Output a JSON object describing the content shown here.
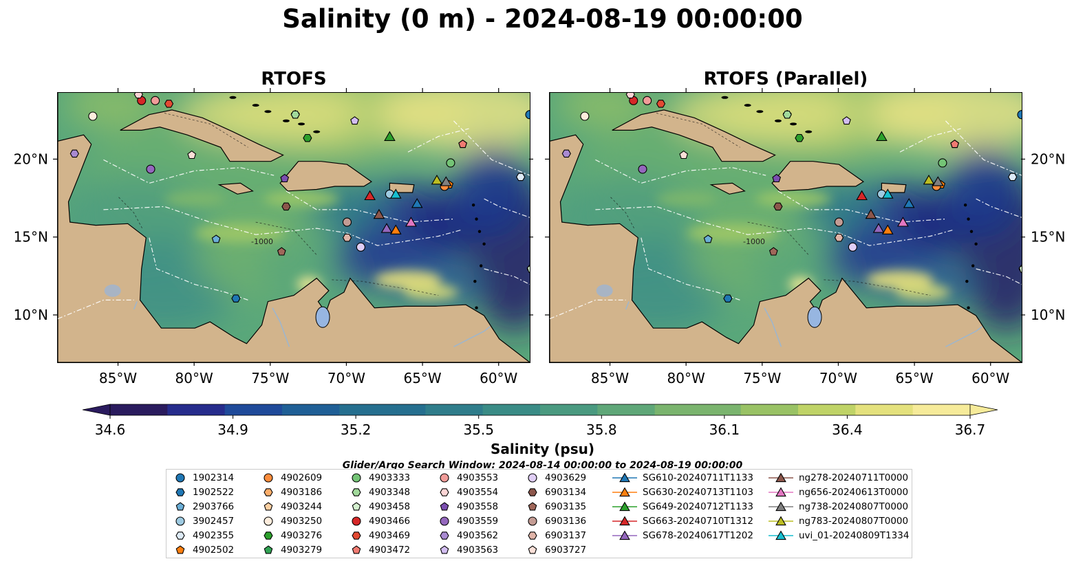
{
  "title": "Salinity (0 m) - 2024-08-19 00:00:00",
  "panels": [
    {
      "title": "RTOFS"
    },
    {
      "title": "RTOFS (Parallel)"
    }
  ],
  "axes": {
    "lon_ticks": [
      "85°W",
      "80°W",
      "75°W",
      "70°W",
      "65°W",
      "60°W"
    ],
    "lat_ticks": [
      "20°N",
      "15°N",
      "10°N"
    ],
    "lon_range": [
      -89,
      -58
    ],
    "lat_range": [
      7,
      24.3
    ]
  },
  "colorbar": {
    "label": "Salinity (psu)",
    "ticks": [
      "34.6",
      "34.9",
      "35.2",
      "35.5",
      "35.8",
      "36.1",
      "36.4",
      "36.7"
    ],
    "range": [
      34.6,
      36.7
    ],
    "colormap": "haline",
    "extend": "both"
  },
  "search_window": "Glider/Argo Search Window: 2024-08-14 00:00:00 to 2024-08-19 00:00:00",
  "contour_labels": [
    "-1000"
  ],
  "colors": {
    "land": "#d2b48c",
    "lakes": "#97b6e1",
    "background": "#ffffff"
  },
  "legend": [
    {
      "label": "1902314",
      "color": "#1f77b4",
      "marker": "circle"
    },
    {
      "label": "1902522",
      "color": "#1f77b4",
      "marker": "hexagon"
    },
    {
      "label": "2903766",
      "color": "#6baed6",
      "marker": "pentagon"
    },
    {
      "label": "3902457",
      "color": "#9ecae1",
      "marker": "circle"
    },
    {
      "label": "4902355",
      "color": "#deebf7",
      "marker": "hexagon"
    },
    {
      "label": "4902502",
      "color": "#ff7f0e",
      "marker": "pentagon"
    },
    {
      "label": "4902609",
      "color": "#fd8d3c",
      "marker": "circle"
    },
    {
      "label": "4903186",
      "color": "#fdae6b",
      "marker": "hexagon"
    },
    {
      "label": "4903244",
      "color": "#fdd0a2",
      "marker": "pentagon"
    },
    {
      "label": "4903250",
      "color": "#feeddd",
      "marker": "circle"
    },
    {
      "label": "4903276",
      "color": "#2ca02c",
      "marker": "hexagon"
    },
    {
      "label": "4903279",
      "color": "#31a354",
      "marker": "pentagon"
    },
    {
      "label": "4903333",
      "color": "#74c476",
      "marker": "circle"
    },
    {
      "label": "4903348",
      "color": "#a1d99b",
      "marker": "hexagon"
    },
    {
      "label": "4903458",
      "color": "#d4f0cf",
      "marker": "pentagon"
    },
    {
      "label": "4903466",
      "color": "#d62728",
      "marker": "circle"
    },
    {
      "label": "4903469",
      "color": "#e34a33",
      "marker": "hexagon"
    },
    {
      "label": "4903472",
      "color": "#f07b72",
      "marker": "pentagon"
    },
    {
      "label": "4903553",
      "color": "#f19c99",
      "marker": "circle"
    },
    {
      "label": "4903554",
      "color": "#fcd5d5",
      "marker": "hexagon"
    },
    {
      "label": "4903558",
      "color": "#7b4fb0",
      "marker": "pentagon"
    },
    {
      "label": "4903559",
      "color": "#9467bd",
      "marker": "circle"
    },
    {
      "label": "4903562",
      "color": "#a98ad1",
      "marker": "hexagon"
    },
    {
      "label": "4903563",
      "color": "#d2bdf0",
      "marker": "pentagon"
    },
    {
      "label": "4903629",
      "color": "#e0cef6",
      "marker": "circle"
    },
    {
      "label": "6903134",
      "color": "#8c564b",
      "marker": "hexagon"
    },
    {
      "label": "6903135",
      "color": "#a0675a",
      "marker": "pentagon"
    },
    {
      "label": "6903136",
      "color": "#c49c94",
      "marker": "circle"
    },
    {
      "label": "6903137",
      "color": "#e0b4a8",
      "marker": "hexagon"
    },
    {
      "label": "6903727",
      "color": "#fbe0d8",
      "marker": "pentagon"
    },
    {
      "label": "SG610-20240711T1133",
      "color": "#1f77b4",
      "marker": "triangle"
    },
    {
      "label": "SG630-20240713T1103",
      "color": "#ff7f0e",
      "marker": "triangle"
    },
    {
      "label": "SG649-20240712T1133",
      "color": "#2ca02c",
      "marker": "triangle"
    },
    {
      "label": "SG663-20240710T1312",
      "color": "#d62728",
      "marker": "triangle"
    },
    {
      "label": "SG678-20240617T1202",
      "color": "#9467bd",
      "marker": "triangle"
    },
    {
      "label": "ng278-20240711T0000",
      "color": "#8c564b",
      "marker": "triangle"
    },
    {
      "label": "ng656-20240613T0000",
      "color": "#e377c2",
      "marker": "triangle"
    },
    {
      "label": "ng738-20240807T0000",
      "color": "#7f7f7f",
      "marker": "triangle"
    },
    {
      "label": "ng783-20240807T0000",
      "color": "#bcbd22",
      "marker": "triangle"
    },
    {
      "label": "uvi_01-20240809T1334",
      "color": "#17becf",
      "marker": "triangle"
    }
  ],
  "platform_positions": [
    {
      "id": "1902314",
      "lon": -58.0,
      "lat": 22.9
    },
    {
      "id": "1902522",
      "lon": -77.3,
      "lat": 11.1
    },
    {
      "id": "2903766",
      "lon": -78.6,
      "lat": 14.9
    },
    {
      "id": "3902457",
      "lon": -67.2,
      "lat": 17.8
    },
    {
      "id": "4902355",
      "lon": -58.6,
      "lat": 18.9
    },
    {
      "id": "4902502",
      "lon": -63.3,
      "lat": 18.4
    },
    {
      "id": "4902609",
      "lon": -63.6,
      "lat": 18.3
    },
    {
      "id": "4903186",
      "lon": -57.9,
      "lat": 13.0
    },
    {
      "id": "4903244",
      "lon": -62.4,
      "lat": 21.0
    },
    {
      "id": "4903250",
      "lon": -86.7,
      "lat": 22.8
    },
    {
      "id": "4903276",
      "lon": -72.6,
      "lat": 21.4
    },
    {
      "id": "4903279",
      "lon": -73.4,
      "lat": 22.9
    },
    {
      "id": "4903333",
      "lon": -63.2,
      "lat": 19.8
    },
    {
      "id": "4903348",
      "lon": -73.4,
      "lat": 22.9
    },
    {
      "id": "4903458",
      "lon": -57.9,
      "lat": 13.0
    },
    {
      "id": "4903466",
      "lon": -83.5,
      "lat": 23.8
    },
    {
      "id": "4903469",
      "lon": -81.7,
      "lat": 23.6
    },
    {
      "id": "4903472",
      "lon": -62.4,
      "lat": 21.0
    },
    {
      "id": "4903553",
      "lon": -82.6,
      "lat": 23.8
    },
    {
      "id": "4903554",
      "lon": -83.7,
      "lat": 24.2
    },
    {
      "id": "4903558",
      "lon": -74.1,
      "lat": 18.8
    },
    {
      "id": "4903559",
      "lon": -82.9,
      "lat": 19.4
    },
    {
      "id": "4903562",
      "lon": -87.9,
      "lat": 20.4
    },
    {
      "id": "4903563",
      "lon": -69.5,
      "lat": 22.5
    },
    {
      "id": "4903629",
      "lon": -69.1,
      "lat": 14.4
    },
    {
      "id": "6903134",
      "lon": -74.0,
      "lat": 17.0
    },
    {
      "id": "6903135",
      "lon": -74.3,
      "lat": 14.1
    },
    {
      "id": "6903136",
      "lon": -70.0,
      "lat": 16.0
    },
    {
      "id": "6903137",
      "lon": -70.0,
      "lat": 15.0
    },
    {
      "id": "6903727",
      "lon": -80.2,
      "lat": 20.3
    },
    {
      "id": "SG610-20240711T1133",
      "lon": -65.4,
      "lat": 17.2
    },
    {
      "id": "SG630-20240713T1103",
      "lon": -66.8,
      "lat": 15.5
    },
    {
      "id": "SG649-20240712T1133",
      "lon": -67.2,
      "lat": 21.5
    },
    {
      "id": "SG663-20240710T1312",
      "lon": -68.5,
      "lat": 17.7
    },
    {
      "id": "SG678-20240617T1202",
      "lon": -67.4,
      "lat": 15.6
    },
    {
      "id": "ng278-20240711T0000",
      "lon": -67.9,
      "lat": 16.5
    },
    {
      "id": "ng656-20240613T0000",
      "lon": -65.8,
      "lat": 16.0
    },
    {
      "id": "ng738-20240807T0000",
      "lon": -63.5,
      "lat": 18.6
    },
    {
      "id": "ng783-20240807T0000",
      "lon": -64.1,
      "lat": 18.7
    },
    {
      "id": "uvi_01-20240809T1334",
      "lon": -66.8,
      "lat": 17.8
    }
  ]
}
